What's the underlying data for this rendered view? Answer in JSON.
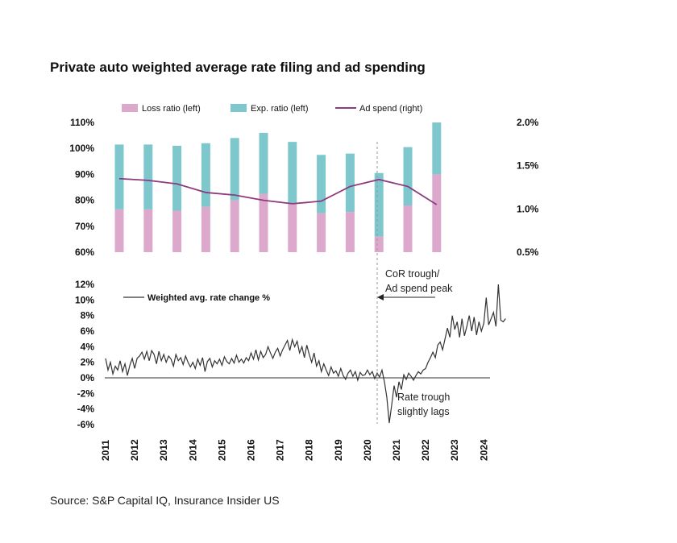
{
  "title": "Private auto weighted average rate filing and ad spending",
  "source": "Source: S&P Capital IQ, Insurance Insider US",
  "colors": {
    "loss": "#dca8cc",
    "exp": "#7ec7cc",
    "ad": "#8e3a7f",
    "rate": "#333333",
    "ref": "#999999"
  },
  "chart_data": [
    {
      "type": "bar",
      "title": "Private auto weighted average rate filing and ad spending",
      "stacked": true,
      "categories": [
        "2011",
        "2012",
        "2013",
        "2014",
        "2015",
        "2016",
        "2017",
        "2018",
        "2019",
        "2020",
        "2021",
        "2022"
      ],
      "series": [
        {
          "name": "Loss ratio (left)",
          "values": [
            76.5,
            76.5,
            76,
            77.5,
            80,
            82.5,
            78.5,
            75,
            75.5,
            66,
            78,
            90
          ]
        },
        {
          "name": "Exp. ratio (left)",
          "values": [
            25,
            25,
            25,
            24.5,
            24,
            23.5,
            24,
            22.5,
            22.5,
            24.5,
            22.5,
            20
          ]
        },
        {
          "name": "Ad spend (right)",
          "axis": "right",
          "type": "line",
          "values": [
            1.35,
            1.33,
            1.29,
            1.19,
            1.16,
            1.1,
            1.06,
            1.09,
            1.26,
            1.34,
            1.26,
            1.05
          ]
        }
      ],
      "yticks_left": [
        "110%",
        "100%",
        "90%",
        "80%",
        "70%",
        "60%"
      ],
      "yticks_right": [
        "2.0%",
        "1.5%",
        "1.0%",
        "0.5%"
      ],
      "ylim_left": [
        60,
        110
      ],
      "ylim_right": [
        0.5,
        2.0
      ],
      "legend": [
        "Loss ratio (left)",
        "Exp. ratio (left)",
        "Ad spend (right)"
      ]
    },
    {
      "type": "line",
      "series_name": "Weighted avg. rate change %",
      "x_start": 2011.0,
      "x_step_months": 1,
      "ylim": [
        -6,
        12
      ],
      "yticks": [
        "12%",
        "10%",
        "8%",
        "6%",
        "4%",
        "2%",
        "0%",
        "-2%",
        "-4%",
        "-6%"
      ],
      "xticks": [
        "2011",
        "2012",
        "2013",
        "2014",
        "2015",
        "2016",
        "2017",
        "2018",
        "2019",
        "2020",
        "2021",
        "2022",
        "2023",
        "2024"
      ],
      "values": [
        2.5,
        1.0,
        2.0,
        0.5,
        1.5,
        1.0,
        2.2,
        0.8,
        1.8,
        0.3,
        1.6,
        2.5,
        1.2,
        2.5,
        2.8,
        3.3,
        2.4,
        3.4,
        2.2,
        3.5,
        3.0,
        1.8,
        3.4,
        2.2,
        3.0,
        2.0,
        2.8,
        2.4,
        1.5,
        3.0,
        2.2,
        2.6,
        1.7,
        2.8,
        2.0,
        1.4,
        2.0,
        1.2,
        2.4,
        1.6,
        2.6,
        0.8,
        2.1,
        2.5,
        1.4,
        2.2,
        1.8,
        2.4,
        1.6,
        2.7,
        2.1,
        1.8,
        2.5,
        1.9,
        2.9,
        2.0,
        2.4,
        1.9,
        2.6,
        2.2,
        3.2,
        2.4,
        3.6,
        2.3,
        3.4,
        2.6,
        3.0,
        4.0,
        3.2,
        2.5,
        3.3,
        3.8,
        2.8,
        3.6,
        4.2,
        4.8,
        3.5,
        4.9,
        4.0,
        4.7,
        3.2,
        4.0,
        2.6,
        4.2,
        3.0,
        2.0,
        3.2,
        1.5,
        2.2,
        0.8,
        1.8,
        1.0,
        0.3,
        1.4,
        0.6,
        0.9,
        0.2,
        1.2,
        0.3,
        -0.2,
        0.6,
        1.0,
        0.2,
        0.8,
        -0.3,
        0.7,
        0.3,
        0.4,
        1.0,
        0.4,
        0.8,
        -0.1,
        0.6,
        0.1,
        1.0,
        -0.5,
        -2.5,
        -5.8,
        -3.5,
        -1.0,
        -2.5,
        -0.5,
        -1.5,
        0.4,
        -0.2,
        0.6,
        0.2,
        -0.3,
        0.3,
        0.8,
        0.5,
        1.0,
        1.2,
        2.0,
        2.6,
        3.3,
        2.6,
        4.2,
        4.6,
        3.6,
        5.0,
        6.4,
        5.2,
        8.0,
        6.2,
        7.2,
        5.2,
        7.6,
        5.4,
        6.6,
        8.0,
        6.0,
        7.8,
        5.5,
        7.2,
        6.0,
        7.0,
        10.3,
        6.8,
        7.6,
        8.4,
        6.6,
        12.0,
        7.4,
        7.2,
        7.6
      ]
    }
  ],
  "annotations": {
    "trough_line1": "CoR trough/",
    "trough_line2": "Ad spend peak",
    "lag_line1": "Rate trough",
    "lag_line2": "slightly lags"
  }
}
